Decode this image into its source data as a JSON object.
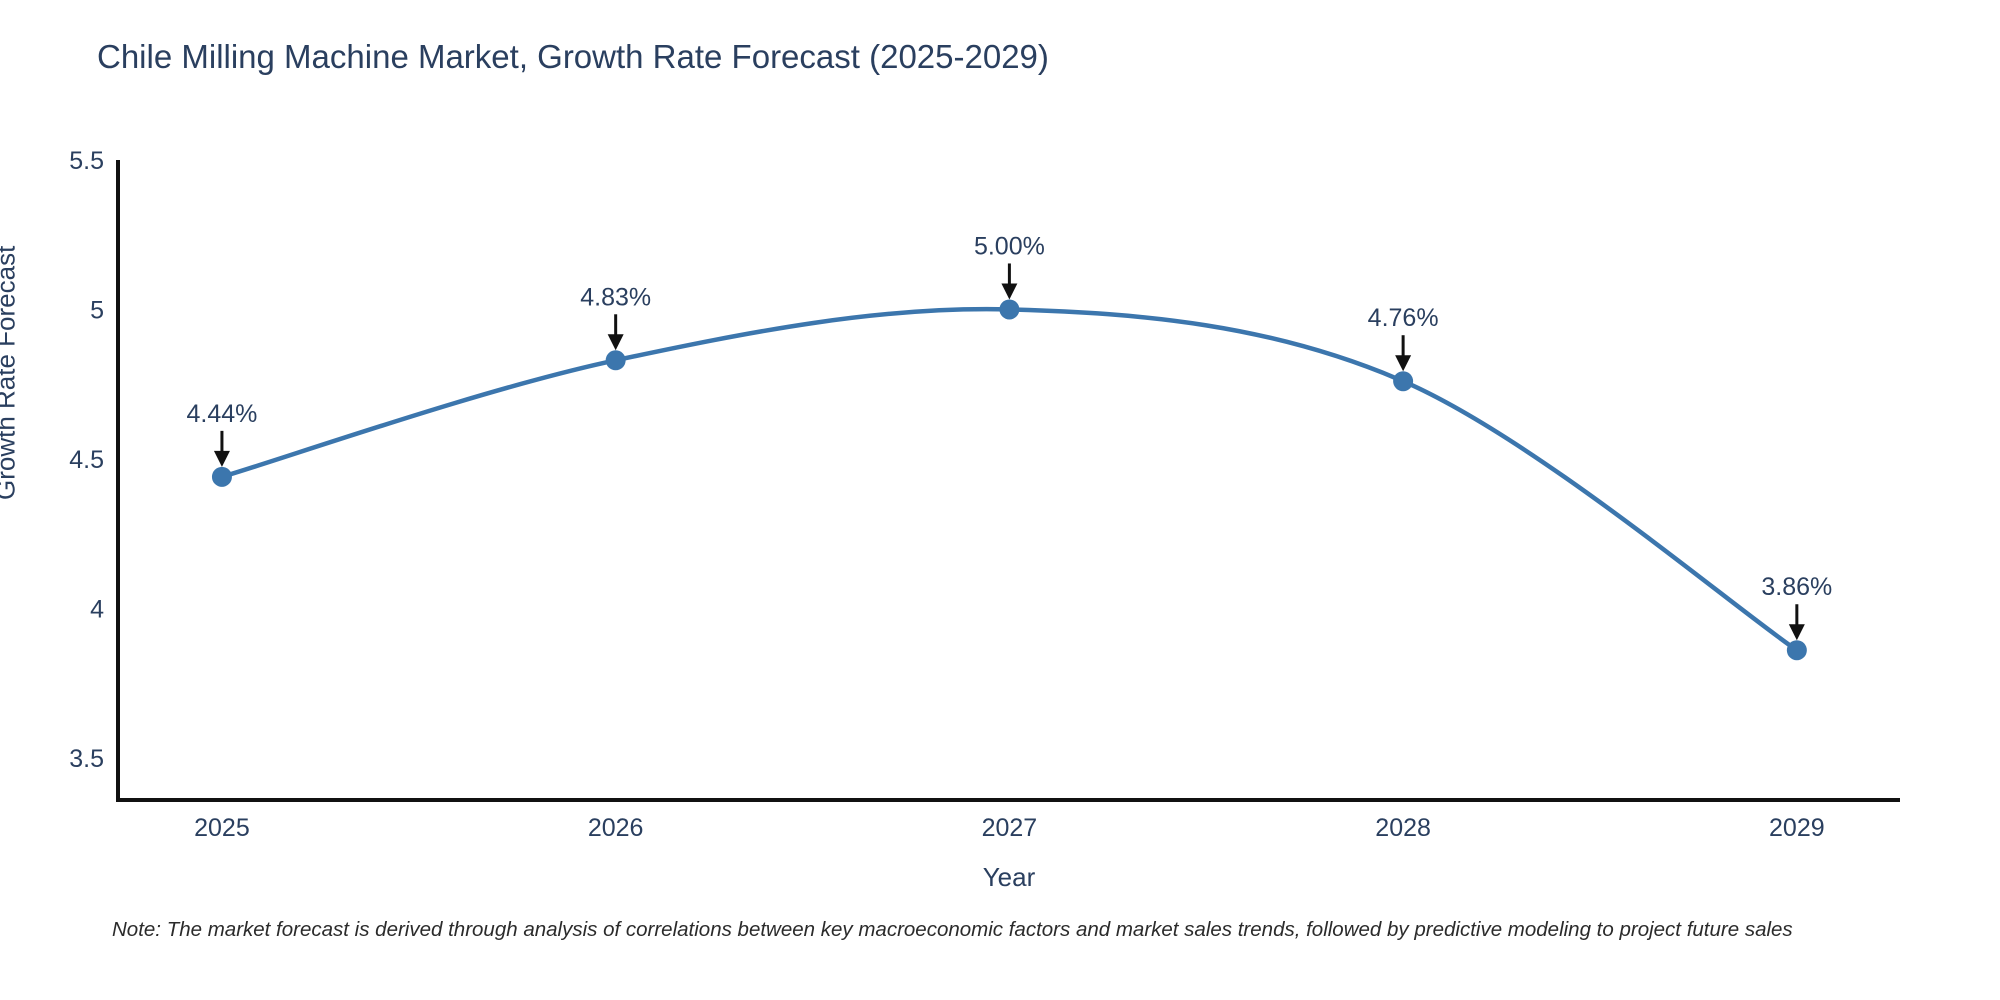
{
  "title": "Chile Milling Machine Market, Growth Rate Forecast (2025-2029)",
  "note": "Note: The market forecast is derived through analysis of correlations between key macroeconomic factors and market sales trends, followed by predictive modeling to project future sales",
  "chart_data": {
    "type": "line",
    "title": "Chile Milling Machine Market, Growth Rate Forecast (2025-2029)",
    "xlabel": "Year",
    "ylabel": "Growth Rate Forecast",
    "x": [
      2025,
      2026,
      2027,
      2028,
      2029
    ],
    "values": [
      4.44,
      4.83,
      5.0,
      4.76,
      3.86
    ],
    "point_labels": [
      "4.44%",
      "4.83%",
      "5.00%",
      "4.76%",
      "3.86%"
    ],
    "x_tick_labels": [
      "2025",
      "2026",
      "2027",
      "2028",
      "2029"
    ],
    "y_tick_labels": [
      "3.5",
      "4",
      "4.5",
      "5",
      "5.5"
    ],
    "y_ticks": [
      3.5,
      4.0,
      4.5,
      5.0,
      5.5
    ],
    "xlim": [
      2024.736,
      2029.262
    ],
    "ylim": [
      3.359,
      5.5
    ],
    "grid": false,
    "legend": "none",
    "line_shape": "spline",
    "line_color": "#3c76ad",
    "marker_color": "#3c76ad",
    "text_color": "#2a3f5f",
    "axis_color": "#111111",
    "arrow_color": "#111111"
  }
}
